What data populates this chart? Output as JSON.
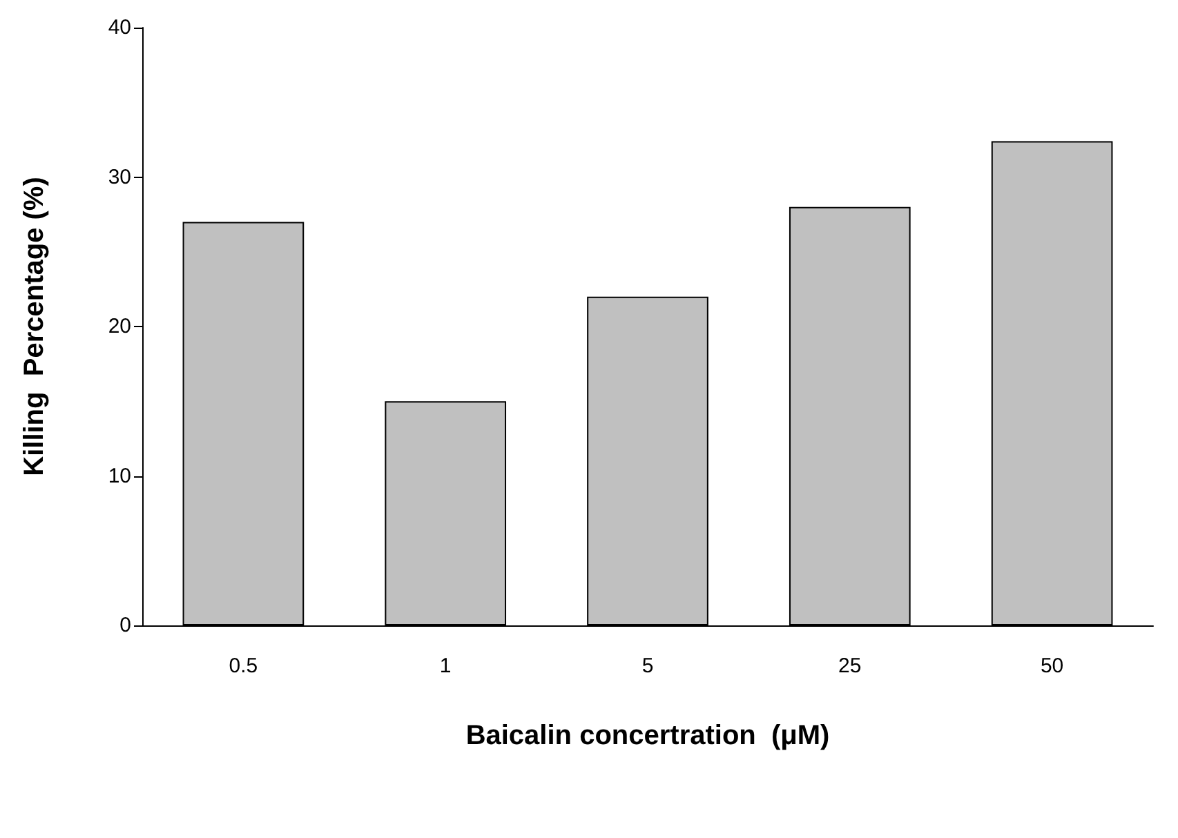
{
  "chart_data": {
    "type": "bar",
    "xlabel": "Baicalin concertration  (μM)",
    "ylabel": "Killing  Percentage (%)",
    "categories": [
      "0.5",
      "1",
      "5",
      "25",
      "50"
    ],
    "values": [
      27,
      15,
      22,
      28,
      32.4
    ],
    "color": "#c0c0c0",
    "ylim": [
      0,
      40
    ],
    "yticks": [
      0,
      10,
      20,
      30,
      40
    ],
    "grid": false
  }
}
